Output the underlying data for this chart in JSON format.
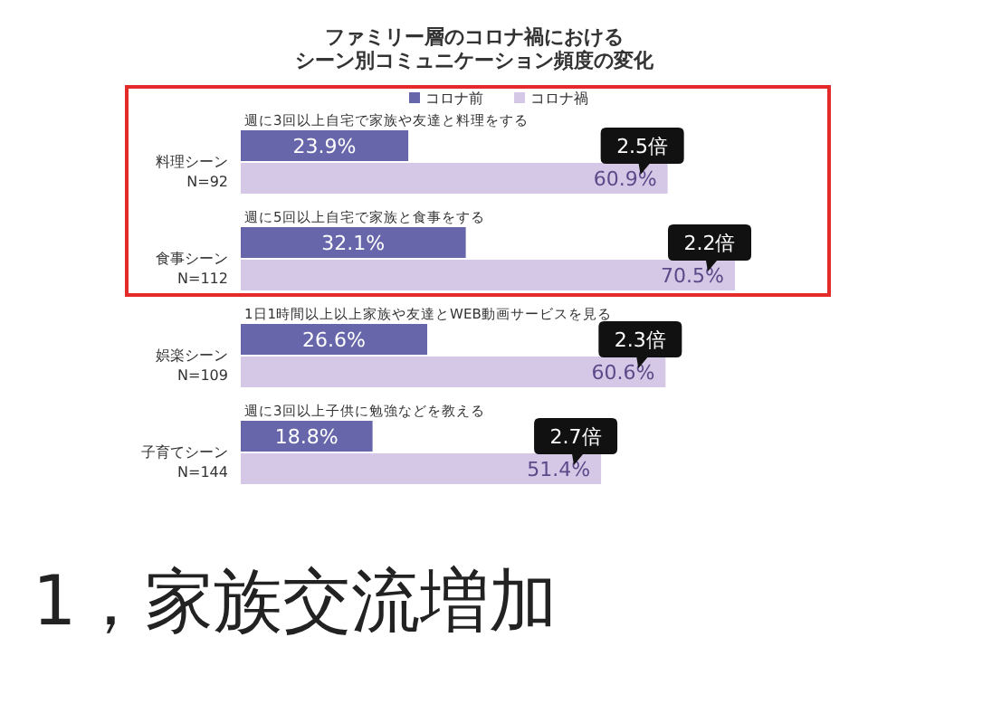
{
  "chart_data": {
    "type": "bar",
    "orientation": "horizontal",
    "title": "ファミリー層のコロナ禍における",
    "subtitle": "シーン別コミュニケーション頻度の変化",
    "categories": [
      "料理シーン\nN=92",
      "食事シーン\nN=112",
      "娯楽シーン\nN=109",
      "子育てシーン\nN=144"
    ],
    "series": [
      {
        "name": "コロナ前",
        "color": "#6766ab",
        "values": [
          23.9,
          32.1,
          26.6,
          18.8
        ],
        "value_labels": [
          "23.9%",
          "32.1%",
          "26.6%",
          "18.8%"
        ]
      },
      {
        "name": "コロナ禍",
        "color": "#d5c8e6",
        "values": [
          60.9,
          70.5,
          60.6,
          51.4
        ],
        "value_labels": [
          "60.9%",
          "70.5%",
          "60.6%",
          "51.4%"
        ]
      }
    ],
    "legend": "top",
    "grid": false,
    "annotations": [
      "週に3回以上自宅で家族や友達と料理をする",
      "週に5回以上自宅で家族と食事をする",
      "1日1時間以上以上家族や友達とWEB動画サービスを見る",
      "週に3回以上子供に勉強などを教える",
      {
        "text": "2.5倍",
        "x": 60.9,
        "y": "料理シーン\nN=92"
      },
      {
        "text": "2.2倍",
        "x": 70.5,
        "y": "食事シーン\nN=112"
      },
      {
        "text": "2.3倍",
        "x": 60.6,
        "y": "娯楽シーン\nN=109"
      },
      {
        "text": "2.7倍",
        "x": 51.4,
        "y": "子育てシーン\nN=144"
      },
      "1，家族交流増加"
    ]
  }
}
